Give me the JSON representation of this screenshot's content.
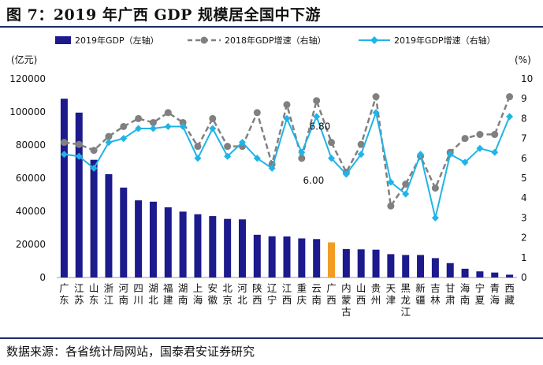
{
  "header": {
    "title": "图 7：2019 年广西 GDP 规模居全国中下游"
  },
  "footer": {
    "source": "数据来源：各省统计局网站，国泰君安证券研究"
  },
  "chart_data": {
    "type": "bar",
    "title": "图 7：2019 年广西 GDP 规模居全国中下游",
    "left_unit": "(亿元)",
    "right_unit": "(%)",
    "ylim_left": [
      0,
      120000
    ],
    "yticks_left": [
      "0",
      "20000",
      "40000",
      "60000",
      "80000",
      "100000",
      "120000"
    ],
    "ylim_right": [
      0,
      10
    ],
    "yticks_right": [
      "0",
      "1",
      "2",
      "3",
      "4",
      "5",
      "6",
      "7",
      "8",
      "9",
      "10"
    ],
    "categories": [
      "广东",
      "江苏",
      "山东",
      "浙江",
      "河南",
      "四川",
      "湖北",
      "福建",
      "湖南",
      "上海",
      "安徽",
      "北京",
      "河北",
      "陕西",
      "辽宁",
      "江西",
      "重庆",
      "云南",
      "广西",
      "内蒙古",
      "山西",
      "贵州",
      "天津",
      "黑龙江",
      "新疆",
      "吉林",
      "甘肃",
      "海南",
      "宁夏",
      "青海",
      "西藏"
    ],
    "highlight_category": "广西",
    "colors": {
      "bar": "#1c1a8c",
      "highlight_bar": "#f39c24",
      "line2018": "#808080",
      "line2019": "#1fb4e8"
    },
    "series": [
      {
        "name": "2019年GDP（左轴）",
        "axis": "left",
        "type": "bar",
        "values": [
          108000,
          99600,
          71100,
          62400,
          54300,
          46600,
          45800,
          42400,
          39800,
          38200,
          37100,
          35400,
          35100,
          25800,
          24900,
          24800,
          23600,
          23200,
          21200,
          17200,
          17000,
          16800,
          14100,
          13600,
          13600,
          11700,
          8700,
          5300,
          3700,
          3000,
          1700
        ]
      },
      {
        "name": "2018年GDP增速（右轴）",
        "axis": "right",
        "type": "line",
        "values": [
          6.8,
          6.7,
          6.4,
          7.1,
          7.6,
          8.0,
          7.8,
          8.3,
          7.8,
          6.6,
          8.0,
          6.6,
          6.6,
          8.3,
          5.7,
          8.7,
          6.0,
          8.9,
          6.8,
          5.3,
          6.7,
          9.1,
          3.6,
          4.7,
          6.1,
          4.5,
          6.3,
          7.0,
          7.2,
          7.2,
          9.1
        ]
      },
      {
        "name": "2019年GDP增速（右轴）",
        "axis": "right",
        "type": "line",
        "values": [
          6.2,
          6.1,
          5.5,
          6.8,
          7.0,
          7.5,
          7.5,
          7.6,
          7.6,
          6.0,
          7.5,
          6.1,
          6.8,
          6.0,
          5.5,
          8.0,
          6.3,
          8.1,
          6.0,
          5.2,
          6.2,
          8.3,
          4.8,
          4.2,
          6.2,
          3.0,
          6.2,
          5.8,
          6.5,
          6.3,
          8.1
        ]
      }
    ],
    "annotations": [
      {
        "text": "6.80",
        "category": "广西",
        "series": "2018年GDP增速（右轴）"
      },
      {
        "text": "6.00",
        "category": "广西",
        "series": "2019年GDP增速（右轴）"
      }
    ],
    "grid": false,
    "legend_position": "top"
  }
}
